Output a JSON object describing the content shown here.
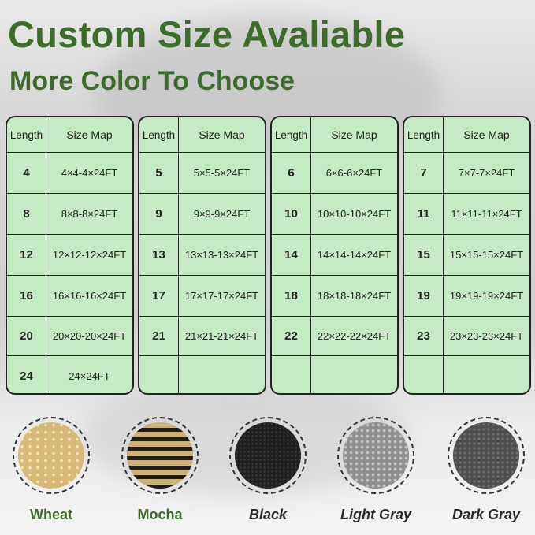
{
  "title": "Custom Size Avaliable",
  "subtitle": "More Color To Choose",
  "table_headers": {
    "length": "Length",
    "size_map": "Size Map"
  },
  "tables": [
    {
      "rows": [
        {
          "length": "4",
          "size": "4×4-4×24FT"
        },
        {
          "length": "8",
          "size": "8×8-8×24FT"
        },
        {
          "length": "12",
          "size": "12×12-12×24FT"
        },
        {
          "length": "16",
          "size": "16×16-16×24FT"
        },
        {
          "length": "20",
          "size": "20×20-20×24FT"
        },
        {
          "length": "24",
          "size": "24×24FT"
        }
      ]
    },
    {
      "rows": [
        {
          "length": "5",
          "size": "5×5-5×24FT"
        },
        {
          "length": "9",
          "size": "9×9-9×24FT"
        },
        {
          "length": "13",
          "size": "13×13-13×24FT"
        },
        {
          "length": "17",
          "size": "17×17-17×24FT"
        },
        {
          "length": "21",
          "size": "21×21-21×24FT"
        },
        {
          "length": "",
          "size": ""
        }
      ]
    },
    {
      "rows": [
        {
          "length": "6",
          "size": "6×6-6×24FT"
        },
        {
          "length": "10",
          "size": "10×10-10×24FT"
        },
        {
          "length": "14",
          "size": "14×14-14×24FT"
        },
        {
          "length": "18",
          "size": "18×18-18×24FT"
        },
        {
          "length": "22",
          "size": "22×22-22×24FT"
        },
        {
          "length": "",
          "size": ""
        }
      ]
    },
    {
      "rows": [
        {
          "length": "7",
          "size": "7×7-7×24FT"
        },
        {
          "length": "11",
          "size": "11×11-11×24FT"
        },
        {
          "length": "15",
          "size": "15×15-15×24FT"
        },
        {
          "length": "19",
          "size": "19×19-19×24FT"
        },
        {
          "length": "23",
          "size": "23×23-23×24FT"
        },
        {
          "length": "",
          "size": ""
        }
      ]
    }
  ],
  "colors": [
    {
      "name": "Wheat",
      "hex": "#dcc08a"
    },
    {
      "name": "Mocha",
      "hex": "#c9ad7a"
    },
    {
      "name": "Black",
      "hex": "#2a2a2a"
    },
    {
      "name": "Light Gray",
      "hex": "#a8a8a8"
    },
    {
      "name": "Dark Gray",
      "hex": "#5e5e5e"
    }
  ],
  "accent": "#3e6b2c",
  "table_bg": "#c4ebc4"
}
